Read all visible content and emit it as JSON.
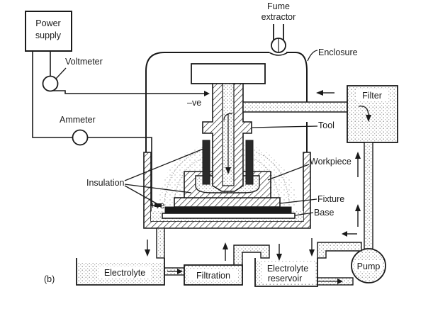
{
  "labels": {
    "power_supply_line1": "Power",
    "power_supply_line2": "supply",
    "fume_line1": "Fume",
    "fume_line2": "extractor",
    "voltmeter": "Voltmeter",
    "enclosure": "Enclosure",
    "minus_ve": "–ve",
    "filter": "Filter",
    "ammeter": "Ammeter",
    "tool": "Tool",
    "workpiece": "Workpiece",
    "insulation": "Insulation",
    "fixture": "Fixture",
    "plus_ve": "+ve",
    "base": "Base",
    "panel": "(b)",
    "electrolyte": "Electrolyte",
    "filtration": "Filtration",
    "reservoir_line1": "Electrolyte",
    "reservoir_line2": "reservoir",
    "pump": "Pump"
  },
  "colors": {
    "ink": "#1a1a1a",
    "liquid_dots": "#8a8a8a",
    "insulation_fill": "#2a2a2a"
  }
}
